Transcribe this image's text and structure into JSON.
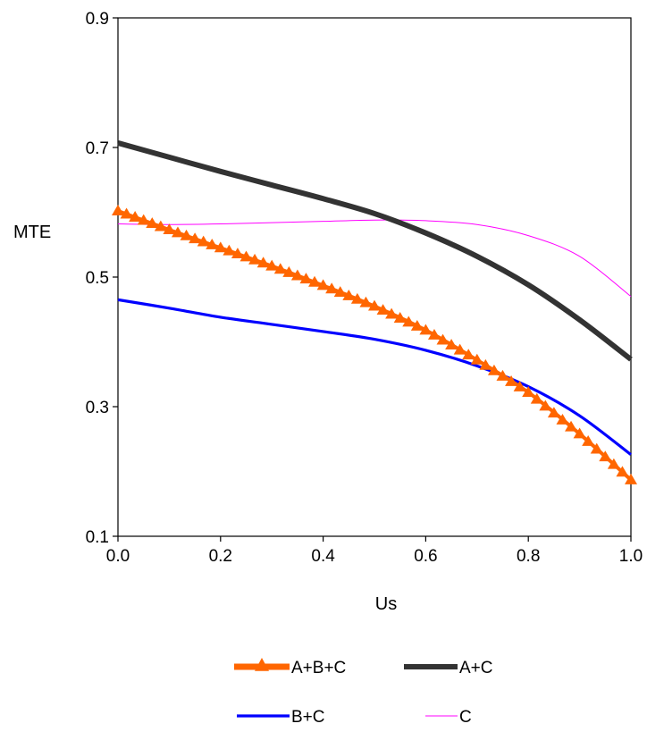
{
  "chart_data": {
    "type": "line",
    "title": "",
    "xlabel": "Us",
    "ylabel": "MTE",
    "xlim": [
      0.0,
      1.0
    ],
    "ylim": [
      0.1,
      0.9
    ],
    "x_ticks": [
      0.0,
      0.2,
      0.4,
      0.6,
      0.8,
      1.0
    ],
    "x_tick_labels": [
      "0.0",
      "0.2",
      "0.4",
      "0.6",
      "0.8",
      "1.0"
    ],
    "y_ticks": [
      0.1,
      0.3,
      0.5,
      0.7,
      0.9
    ],
    "y_tick_labels": [
      "0.1",
      "0.3",
      "0.5",
      "0.7",
      "0.9"
    ],
    "grid": false,
    "legend_position": "bottom",
    "x": [
      0.0,
      0.1,
      0.2,
      0.3,
      0.4,
      0.5,
      0.6,
      0.7,
      0.8,
      0.9,
      1.0
    ],
    "series": [
      {
        "name": "A+B+C",
        "color": "#ff6600",
        "marker": "triangle",
        "values": [
          0.602,
          0.573,
          0.545,
          0.517,
          0.487,
          0.455,
          0.418,
          0.372,
          0.322,
          0.258,
          0.187
        ]
      },
      {
        "name": "A+C",
        "color": "#333333",
        "marker": "none",
        "values": [
          0.707,
          0.685,
          0.663,
          0.642,
          0.621,
          0.598,
          0.568,
          0.532,
          0.488,
          0.434,
          0.373
        ]
      },
      {
        "name": "B+C",
        "color": "#0000ff",
        "marker": "none",
        "values": [
          0.465,
          0.452,
          0.438,
          0.427,
          0.416,
          0.404,
          0.387,
          0.363,
          0.331,
          0.286,
          0.226
        ]
      },
      {
        "name": "C",
        "color": "#ff00ff",
        "marker": "none",
        "values": [
          0.582,
          0.581,
          0.582,
          0.584,
          0.586,
          0.588,
          0.587,
          0.581,
          0.564,
          0.532,
          0.47
        ]
      }
    ]
  }
}
